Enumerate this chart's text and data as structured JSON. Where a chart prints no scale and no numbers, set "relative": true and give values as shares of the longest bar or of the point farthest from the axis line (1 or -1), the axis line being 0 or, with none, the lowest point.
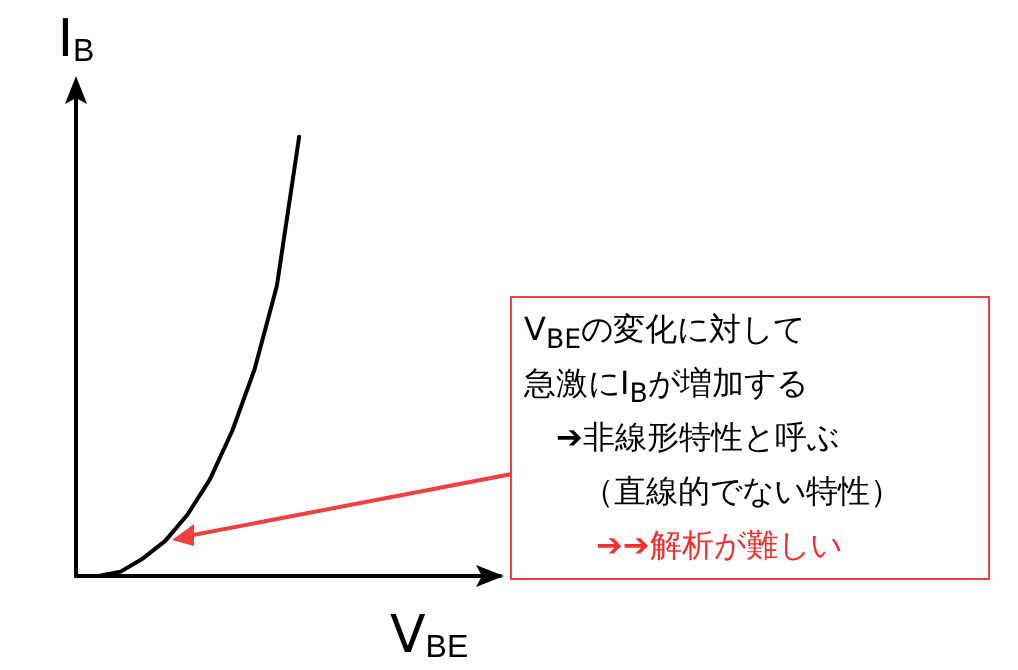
{
  "chart_data": {
    "type": "line",
    "relative": true,
    "xlabel": "V$_{BE}$",
    "ylabel": "I$_{B}$",
    "categories": [
      null,
      null,
      null,
      null,
      null,
      null,
      null,
      null,
      null,
      null,
      null,
      null,
      null,
      null,
      null,
      null,
      null,
      null,
      null,
      null
    ],
    "series": [
      {
        "color": "#000000",
        "values": [
          0,
          0,
          0.01,
          0.04,
          0.08,
          0.14,
          0.22,
          0.33,
          0.47,
          0.66,
          1,
          null,
          null,
          null,
          null,
          null,
          null,
          null,
          null,
          null
        ]
      }
    ],
    "marker": "none",
    "line_style": "solid",
    "grid": false,
    "annotations": [
      "V$_{BE}$の変化に対して",
      "急激にI$_{B}$が増加する",
      "➔非線形特性と呼ぶ",
      "（直線的でない特性）",
      "➔➔解析が難しい"
    ]
  }
}
